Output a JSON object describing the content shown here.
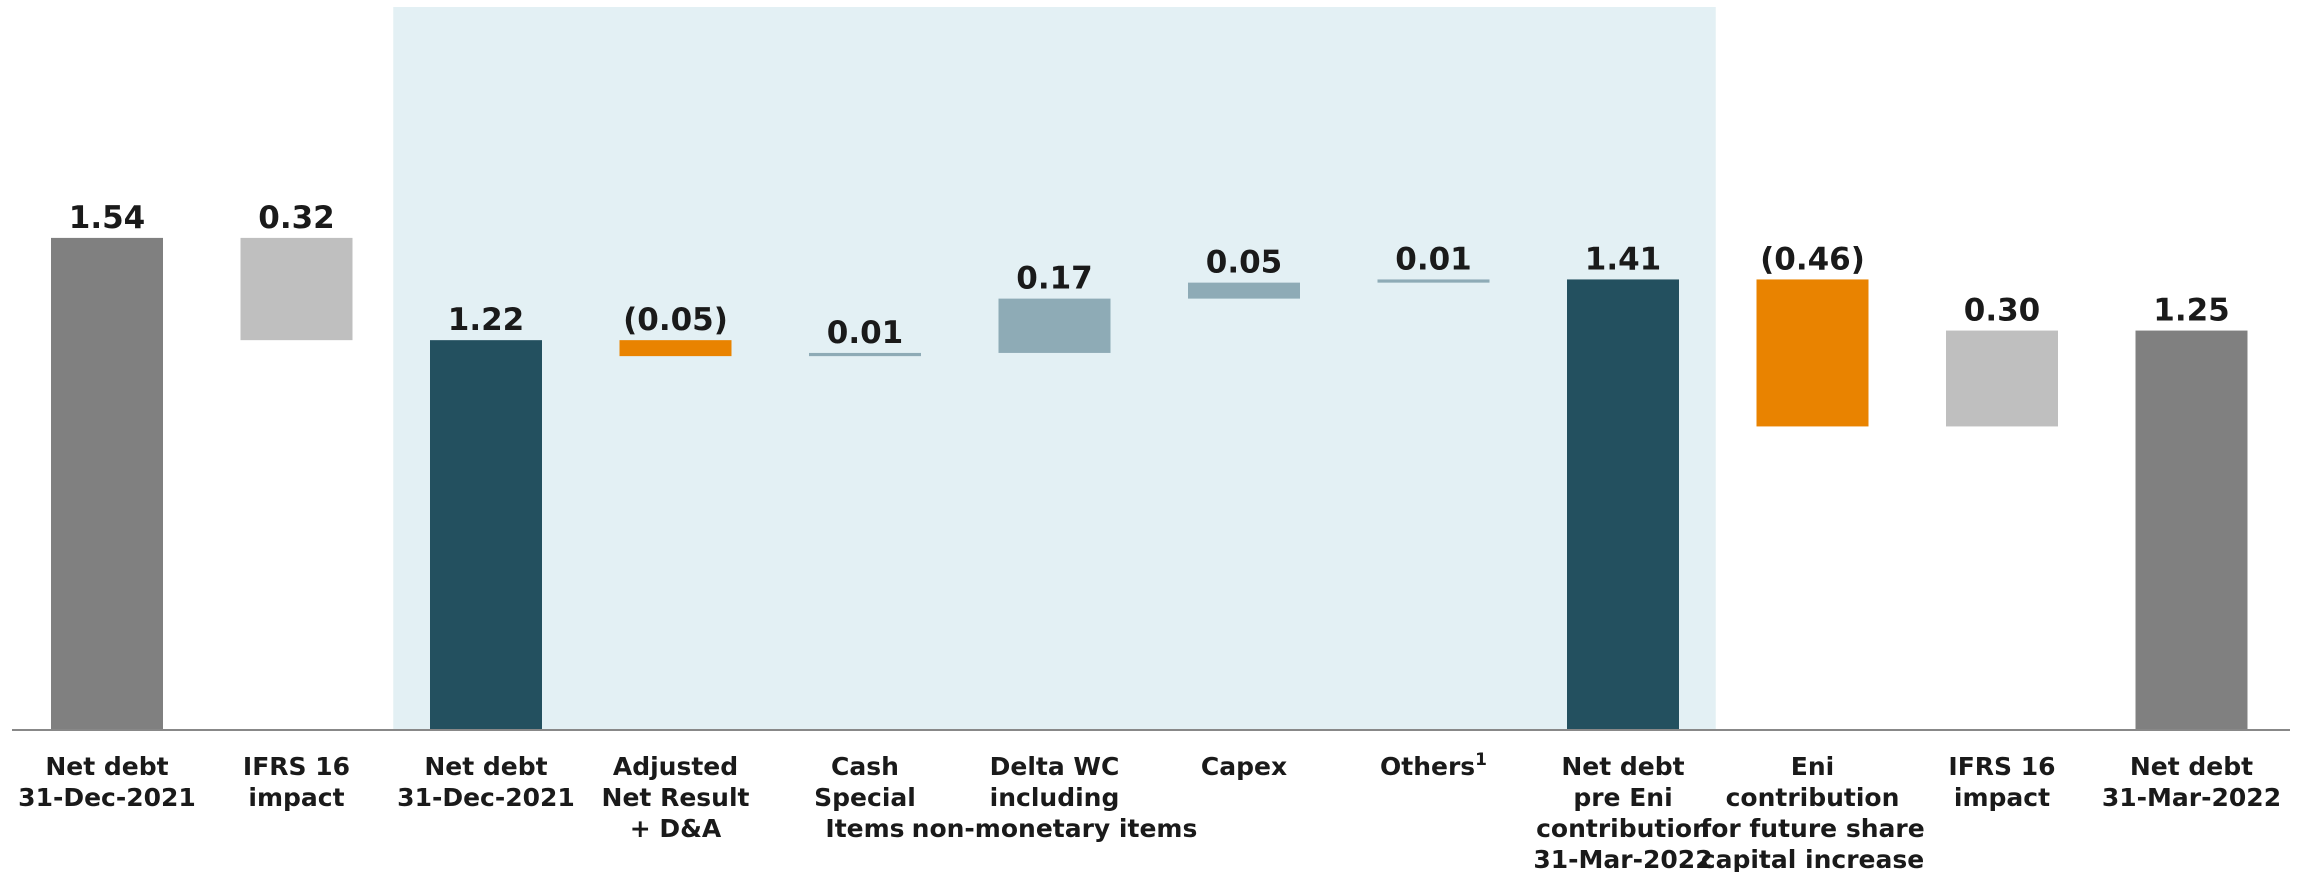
{
  "chart_data": {
    "type": "waterfall",
    "categories": [
      [
        "Net debt",
        "31-Dec-2021"
      ],
      [
        "IFRS 16",
        "impact"
      ],
      [
        "Net debt",
        "31-Dec-2021"
      ],
      [
        "Adjusted",
        "Net Result",
        "+ D&A"
      ],
      [
        "Cash",
        "Special",
        "Items"
      ],
      [
        "Delta WC",
        "including",
        "non-monetary items"
      ],
      [
        "Capex"
      ],
      [
        "Others"
      ],
      [
        "Net debt",
        "pre Eni",
        "contribution",
        "31-Mar-2022"
      ],
      [
        "Eni",
        "contribution",
        "for future share",
        "capital increase"
      ],
      [
        "IFRS 16",
        "impact"
      ],
      [
        "Net debt",
        "31-Mar-2022"
      ]
    ],
    "category_superscripts": [
      null,
      null,
      null,
      null,
      null,
      null,
      null,
      "1",
      null,
      null,
      null,
      null
    ],
    "values": [
      1.54,
      0.32,
      1.22,
      -0.05,
      0.01,
      0.17,
      0.05,
      0.01,
      1.41,
      -0.46,
      0.3,
      1.25
    ],
    "value_labels": [
      "1.54",
      "0.32",
      "1.22",
      "(0.05)",
      "0.01",
      "0.17",
      "0.05",
      "0.01",
      "1.41",
      "(0.46)",
      "0.30",
      "1.25"
    ],
    "measure": [
      "total",
      "reduction",
      "total",
      "relative",
      "relative",
      "relative",
      "relative",
      "relative",
      "total",
      "relative",
      "relative",
      "total"
    ],
    "colors": [
      "#808080",
      "#bfbfbf",
      "#23505f",
      "#e98300",
      "#8eabb6",
      "#8eabb6",
      "#8eabb6",
      "#8eabb6",
      "#23505f",
      "#e98300",
      "#bfbfbf",
      "#808080"
    ],
    "highlight": {
      "from": 2,
      "to": 8,
      "color": "#e3f0f4"
    },
    "ylim": [
      0,
      2.2
    ]
  }
}
